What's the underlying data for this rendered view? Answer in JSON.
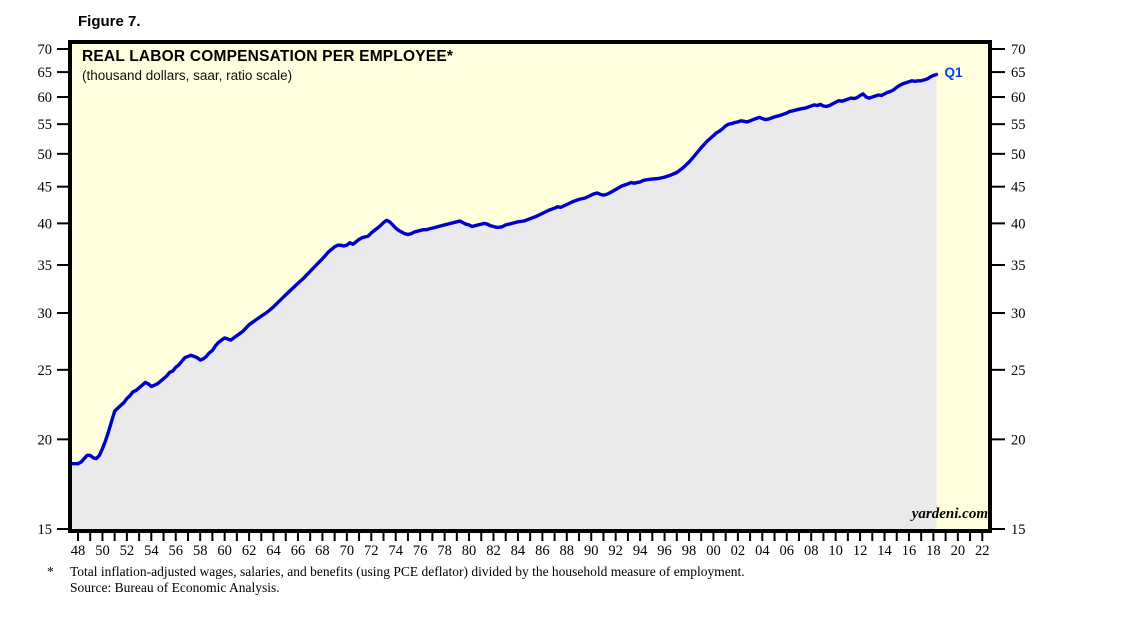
{
  "figure": {
    "label": "Figure 7."
  },
  "chart": {
    "title": "REAL LABOR COMPENSATION PER EMPLOYEE*",
    "subtitle": "(thousand dollars, saar, ratio scale)",
    "watermark": "yardeni.com",
    "end_label": "Q1"
  },
  "axes": {
    "scale": "ratio (log)",
    "y_ticks": [
      70,
      65,
      60,
      55,
      50,
      45,
      40,
      35,
      30,
      25,
      20,
      15
    ],
    "x_tick_labels": [
      "48",
      "50",
      "52",
      "54",
      "56",
      "58",
      "60",
      "62",
      "64",
      "66",
      "68",
      "70",
      "72",
      "74",
      "76",
      "78",
      "80",
      "82",
      "84",
      "86",
      "88",
      "90",
      "92",
      "94",
      "96",
      "98",
      "00",
      "02",
      "04",
      "06",
      "08",
      "10",
      "12",
      "14",
      "16",
      "18",
      "20",
      "22"
    ],
    "x_minor_tick_step_years": 1,
    "x_label_step_years": 2
  },
  "footnote": {
    "marker": "*",
    "lines": [
      "Total inflation-adjusted wages, salaries, and benefits (using PCE deflator) divided by the household measure of employment.",
      "Source: Bureau of Economic Analysis."
    ]
  },
  "colors": {
    "plot_background": "#FFFFDE",
    "area_fill": "#EAEAED",
    "line": "#0000CD",
    "end_label": "#0040EE",
    "frame": "#000000",
    "text": "#000000"
  },
  "chart_data": {
    "type": "line",
    "title": "REAL LABOR COMPENSATION PER EMPLOYEE*",
    "subtitle": "(thousand dollars, saar, ratio scale)",
    "y_scale": "log",
    "ylim": [
      15,
      70
    ],
    "x_range_years": [
      1948,
      2022
    ],
    "grid": false,
    "legend": "none",
    "series": [
      {
        "name": "Real labor compensation per employee (thousand dollars, saar)",
        "end_point_label": "Q1",
        "points": [
          [
            1948.0,
            18.5
          ],
          [
            1948.25,
            18.6
          ],
          [
            1948.5,
            18.8
          ],
          [
            1948.75,
            19.0
          ],
          [
            1949.0,
            19.0
          ],
          [
            1949.25,
            18.85
          ],
          [
            1949.5,
            18.8
          ],
          [
            1949.75,
            19.0
          ],
          [
            1950.0,
            19.4
          ],
          [
            1950.25,
            19.9
          ],
          [
            1950.5,
            20.5
          ],
          [
            1950.75,
            21.2
          ],
          [
            1951.0,
            21.9
          ],
          [
            1951.25,
            22.1
          ],
          [
            1951.5,
            22.3
          ],
          [
            1951.75,
            22.5
          ],
          [
            1952.0,
            22.8
          ],
          [
            1952.25,
            23.0
          ],
          [
            1952.5,
            23.3
          ],
          [
            1952.75,
            23.4
          ],
          [
            1953.0,
            23.6
          ],
          [
            1953.25,
            23.8
          ],
          [
            1953.5,
            24.0
          ],
          [
            1953.75,
            23.9
          ],
          [
            1954.0,
            23.7
          ],
          [
            1954.25,
            23.8
          ],
          [
            1954.5,
            23.9
          ],
          [
            1954.75,
            24.1
          ],
          [
            1955.0,
            24.3
          ],
          [
            1955.25,
            24.5
          ],
          [
            1955.5,
            24.8
          ],
          [
            1955.75,
            24.9
          ],
          [
            1956.0,
            25.2
          ],
          [
            1956.25,
            25.4
          ],
          [
            1956.5,
            25.7
          ],
          [
            1956.75,
            26.0
          ],
          [
            1957.0,
            26.1
          ],
          [
            1957.25,
            26.2
          ],
          [
            1957.5,
            26.1
          ],
          [
            1957.75,
            26.0
          ],
          [
            1958.0,
            25.8
          ],
          [
            1958.25,
            25.9
          ],
          [
            1958.5,
            26.1
          ],
          [
            1958.75,
            26.4
          ],
          [
            1959.0,
            26.6
          ],
          [
            1959.25,
            27.0
          ],
          [
            1959.5,
            27.3
          ],
          [
            1959.75,
            27.5
          ],
          [
            1960.0,
            27.7
          ],
          [
            1960.25,
            27.6
          ],
          [
            1960.5,
            27.5
          ],
          [
            1960.75,
            27.7
          ],
          [
            1961.0,
            27.9
          ],
          [
            1961.5,
            28.3
          ],
          [
            1962.0,
            28.9
          ],
          [
            1962.5,
            29.3
          ],
          [
            1963.0,
            29.7
          ],
          [
            1963.5,
            30.1
          ],
          [
            1964.0,
            30.6
          ],
          [
            1964.5,
            31.2
          ],
          [
            1965.0,
            31.8
          ],
          [
            1965.5,
            32.4
          ],
          [
            1966.0,
            33.0
          ],
          [
            1966.5,
            33.6
          ],
          [
            1967.0,
            34.3
          ],
          [
            1967.5,
            35.0
          ],
          [
            1968.0,
            35.7
          ],
          [
            1968.5,
            36.5
          ],
          [
            1969.0,
            37.1
          ],
          [
            1969.25,
            37.3
          ],
          [
            1969.5,
            37.3
          ],
          [
            1969.75,
            37.2
          ],
          [
            1970.0,
            37.3
          ],
          [
            1970.25,
            37.6
          ],
          [
            1970.5,
            37.4
          ],
          [
            1970.75,
            37.7
          ],
          [
            1971.0,
            38.0
          ],
          [
            1971.25,
            38.2
          ],
          [
            1971.5,
            38.3
          ],
          [
            1971.75,
            38.4
          ],
          [
            1972.0,
            38.8
          ],
          [
            1972.25,
            39.1
          ],
          [
            1972.5,
            39.4
          ],
          [
            1972.75,
            39.7
          ],
          [
            1973.0,
            40.1
          ],
          [
            1973.25,
            40.4
          ],
          [
            1973.5,
            40.2
          ],
          [
            1973.75,
            39.8
          ],
          [
            1974.0,
            39.4
          ],
          [
            1974.25,
            39.1
          ],
          [
            1974.5,
            38.9
          ],
          [
            1974.75,
            38.7
          ],
          [
            1975.0,
            38.6
          ],
          [
            1975.25,
            38.7
          ],
          [
            1975.5,
            38.9
          ],
          [
            1975.75,
            39.0
          ],
          [
            1976.0,
            39.1
          ],
          [
            1976.25,
            39.2
          ],
          [
            1976.5,
            39.2
          ],
          [
            1976.75,
            39.3
          ],
          [
            1977.0,
            39.4
          ],
          [
            1977.5,
            39.6
          ],
          [
            1978.0,
            39.8
          ],
          [
            1978.5,
            40.0
          ],
          [
            1979.0,
            40.2
          ],
          [
            1979.25,
            40.3
          ],
          [
            1979.5,
            40.1
          ],
          [
            1979.75,
            39.9
          ],
          [
            1980.0,
            39.8
          ],
          [
            1980.25,
            39.6
          ],
          [
            1980.5,
            39.7
          ],
          [
            1980.75,
            39.8
          ],
          [
            1981.0,
            39.9
          ],
          [
            1981.25,
            40.0
          ],
          [
            1981.5,
            39.9
          ],
          [
            1981.75,
            39.7
          ],
          [
            1982.0,
            39.6
          ],
          [
            1982.25,
            39.5
          ],
          [
            1982.5,
            39.5
          ],
          [
            1982.75,
            39.6
          ],
          [
            1983.0,
            39.8
          ],
          [
            1983.25,
            39.9
          ],
          [
            1983.5,
            40.0
          ],
          [
            1983.75,
            40.1
          ],
          [
            1984.0,
            40.2
          ],
          [
            1984.5,
            40.3
          ],
          [
            1985.0,
            40.6
          ],
          [
            1985.5,
            40.9
          ],
          [
            1986.0,
            41.3
          ],
          [
            1986.5,
            41.7
          ],
          [
            1987.0,
            42.0
          ],
          [
            1987.25,
            42.2
          ],
          [
            1987.5,
            42.1
          ],
          [
            1988.0,
            42.5
          ],
          [
            1988.5,
            42.9
          ],
          [
            1989.0,
            43.2
          ],
          [
            1989.5,
            43.4
          ],
          [
            1990.0,
            43.8
          ],
          [
            1990.25,
            44.0
          ],
          [
            1990.5,
            44.1
          ],
          [
            1990.75,
            43.9
          ],
          [
            1991.0,
            43.8
          ],
          [
            1991.25,
            43.9
          ],
          [
            1991.5,
            44.1
          ],
          [
            1992.0,
            44.6
          ],
          [
            1992.5,
            45.1
          ],
          [
            1993.0,
            45.4
          ],
          [
            1993.25,
            45.6
          ],
          [
            1993.5,
            45.5
          ],
          [
            1994.0,
            45.7
          ],
          [
            1994.25,
            45.9
          ],
          [
            1994.5,
            46.0
          ],
          [
            1995.0,
            46.1
          ],
          [
            1995.5,
            46.2
          ],
          [
            1996.0,
            46.4
          ],
          [
            1996.5,
            46.7
          ],
          [
            1997.0,
            47.1
          ],
          [
            1997.5,
            47.8
          ],
          [
            1998.0,
            48.7
          ],
          [
            1998.5,
            49.8
          ],
          [
            1999.0,
            51.0
          ],
          [
            1999.5,
            52.1
          ],
          [
            2000.0,
            53.0
          ],
          [
            2000.25,
            53.5
          ],
          [
            2000.5,
            53.8
          ],
          [
            2000.75,
            54.2
          ],
          [
            2001.0,
            54.7
          ],
          [
            2001.25,
            55.0
          ],
          [
            2001.5,
            55.1
          ],
          [
            2001.75,
            55.3
          ],
          [
            2002.0,
            55.4
          ],
          [
            2002.25,
            55.6
          ],
          [
            2002.5,
            55.5
          ],
          [
            2002.75,
            55.4
          ],
          [
            2003.0,
            55.6
          ],
          [
            2003.25,
            55.8
          ],
          [
            2003.5,
            56.0
          ],
          [
            2003.75,
            56.2
          ],
          [
            2004.0,
            56.0
          ],
          [
            2004.25,
            55.8
          ],
          [
            2004.5,
            55.9
          ],
          [
            2004.75,
            56.1
          ],
          [
            2005.0,
            56.3
          ],
          [
            2005.5,
            56.6
          ],
          [
            2006.0,
            57.0
          ],
          [
            2006.25,
            57.3
          ],
          [
            2006.5,
            57.4
          ],
          [
            2007.0,
            57.7
          ],
          [
            2007.5,
            57.9
          ],
          [
            2008.0,
            58.3
          ],
          [
            2008.25,
            58.5
          ],
          [
            2008.5,
            58.4
          ],
          [
            2008.75,
            58.6
          ],
          [
            2009.0,
            58.3
          ],
          [
            2009.25,
            58.2
          ],
          [
            2009.5,
            58.4
          ],
          [
            2009.75,
            58.7
          ],
          [
            2010.0,
            59.0
          ],
          [
            2010.25,
            59.3
          ],
          [
            2010.5,
            59.2
          ],
          [
            2010.75,
            59.4
          ],
          [
            2011.0,
            59.6
          ],
          [
            2011.25,
            59.8
          ],
          [
            2011.5,
            59.7
          ],
          [
            2011.75,
            59.9
          ],
          [
            2012.0,
            60.3
          ],
          [
            2012.25,
            60.6
          ],
          [
            2012.5,
            60.0
          ],
          [
            2012.75,
            59.8
          ],
          [
            2013.0,
            60.0
          ],
          [
            2013.25,
            60.2
          ],
          [
            2013.5,
            60.4
          ],
          [
            2013.75,
            60.3
          ],
          [
            2014.0,
            60.6
          ],
          [
            2014.25,
            60.9
          ],
          [
            2014.5,
            61.1
          ],
          [
            2014.75,
            61.4
          ],
          [
            2015.0,
            61.9
          ],
          [
            2015.25,
            62.3
          ],
          [
            2015.5,
            62.6
          ],
          [
            2015.75,
            62.8
          ],
          [
            2016.0,
            63.0
          ],
          [
            2016.25,
            63.2
          ],
          [
            2016.5,
            63.1
          ],
          [
            2016.75,
            63.2
          ],
          [
            2017.0,
            63.2
          ],
          [
            2017.25,
            63.4
          ],
          [
            2017.5,
            63.6
          ],
          [
            2017.75,
            64.0
          ],
          [
            2018.0,
            64.3
          ],
          [
            2018.25,
            64.5
          ]
        ]
      }
    ]
  }
}
